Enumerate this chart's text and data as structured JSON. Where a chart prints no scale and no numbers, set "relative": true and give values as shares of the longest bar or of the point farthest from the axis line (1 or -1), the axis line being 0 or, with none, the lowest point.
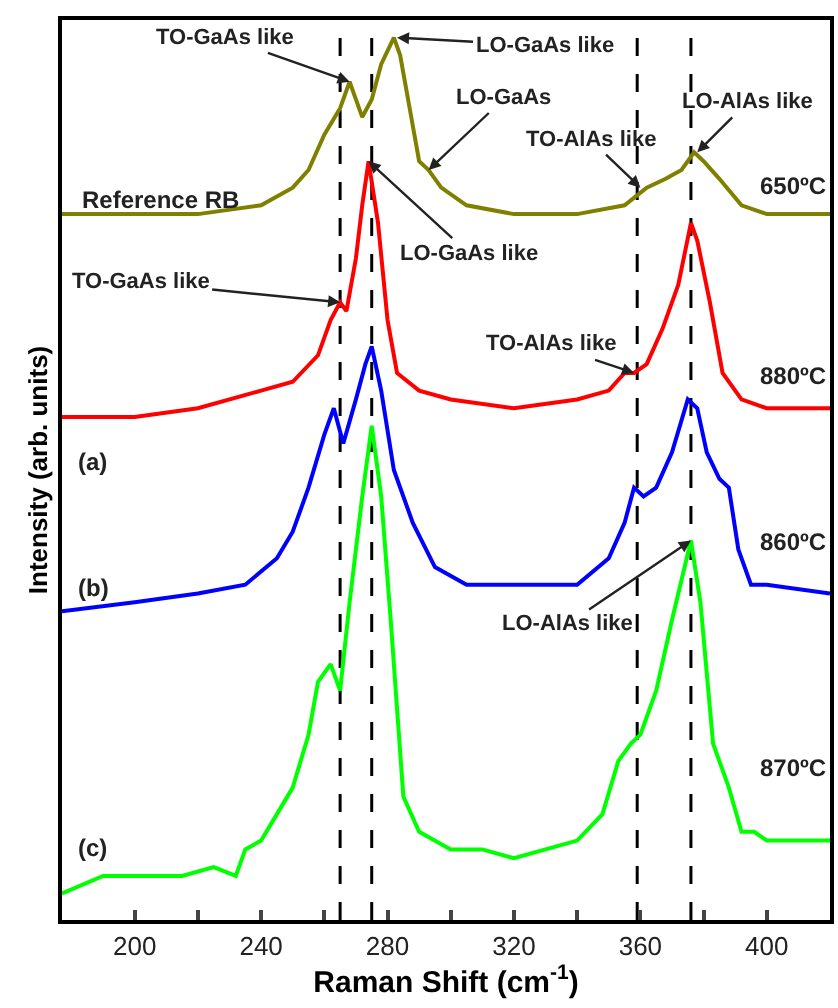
{
  "chart_data": {
    "type": "line",
    "relative": true,
    "xlabel": "Raman Shift (cm$^{-1}$)",
    "ylabel": "Intensity (arb. units)",
    "xlim": [
      177,
      420
    ],
    "xticks": [
      200,
      {
        "value": 220,
        "label": null
      },
      240,
      {
        "value": 260,
        "label": null
      },
      280,
      {
        "value": 300,
        "label": null
      },
      320,
      {
        "value": 340,
        "label": null
      },
      360,
      {
        "value": 380,
        "label": null
      },
      400
    ],
    "tick_labels": "x",
    "series": [
      {
        "color": "#808000",
        "x": [
          177,
          200,
          220,
          240,
          250,
          255,
          260,
          265,
          268,
          270,
          272,
          275,
          278,
          282,
          284,
          287,
          290,
          293,
          297,
          305,
          320,
          340,
          355,
          362,
          368,
          373,
          377,
          380,
          385,
          392,
          400,
          420
        ],
        "values": [
          0.8,
          0.8,
          0.8,
          0.81,
          0.83,
          0.85,
          0.89,
          0.92,
          0.95,
          0.93,
          0.91,
          0.93,
          0.97,
          1.0,
          0.98,
          0.92,
          0.86,
          0.85,
          0.83,
          0.81,
          0.8,
          0.8,
          0.81,
          0.83,
          0.84,
          0.85,
          0.87,
          0.86,
          0.84,
          0.81,
          0.8,
          0.8
        ]
      },
      {
        "color": "#ff0000",
        "x": [
          177,
          200,
          220,
          240,
          250,
          258,
          262,
          265,
          267,
          270,
          272,
          274,
          277,
          280,
          283,
          290,
          300,
          320,
          340,
          350,
          355,
          358,
          362,
          367,
          372,
          376,
          378,
          382,
          386,
          392,
          400,
          420
        ],
        "values": [
          0.57,
          0.57,
          0.58,
          0.6,
          0.61,
          0.64,
          0.68,
          0.7,
          0.69,
          0.75,
          0.81,
          0.86,
          0.79,
          0.68,
          0.62,
          0.6,
          0.59,
          0.58,
          0.59,
          0.6,
          0.62,
          0.62,
          0.63,
          0.67,
          0.72,
          0.79,
          0.77,
          0.7,
          0.62,
          0.59,
          0.58,
          0.58
        ]
      },
      {
        "color": "#0000ff",
        "x": [
          177,
          200,
          220,
          235,
          245,
          250,
          255,
          260,
          263,
          266,
          270,
          273,
          275,
          278,
          282,
          288,
          295,
          305,
          320,
          340,
          350,
          355,
          358,
          361,
          365,
          370,
          375,
          378,
          381,
          385,
          388,
          391,
          395,
          400,
          420
        ],
        "values": [
          0.35,
          0.36,
          0.37,
          0.38,
          0.41,
          0.44,
          0.49,
          0.55,
          0.58,
          0.54,
          0.59,
          0.63,
          0.65,
          0.6,
          0.51,
          0.45,
          0.4,
          0.38,
          0.38,
          0.38,
          0.41,
          0.45,
          0.49,
          0.48,
          0.49,
          0.53,
          0.59,
          0.58,
          0.53,
          0.5,
          0.49,
          0.42,
          0.38,
          0.38,
          0.37
        ]
      },
      {
        "color": "#00ff00",
        "x": [
          177,
          190,
          200,
          215,
          225,
          232,
          235,
          240,
          245,
          250,
          255,
          258,
          262,
          265,
          268,
          272,
          275,
          278,
          281,
          285,
          290,
          300,
          310,
          320,
          330,
          340,
          348,
          353,
          357,
          360,
          365,
          370,
          374,
          376,
          379,
          383,
          388,
          392,
          396,
          400,
          420
        ],
        "values": [
          0.03,
          0.05,
          0.05,
          0.05,
          0.06,
          0.05,
          0.08,
          0.09,
          0.12,
          0.15,
          0.21,
          0.27,
          0.29,
          0.26,
          0.36,
          0.48,
          0.56,
          0.48,
          0.34,
          0.14,
          0.1,
          0.08,
          0.08,
          0.07,
          0.08,
          0.09,
          0.12,
          0.18,
          0.2,
          0.21,
          0.26,
          0.34,
          0.4,
          0.43,
          0.36,
          0.2,
          0.15,
          0.1,
          0.1,
          0.09,
          0.09
        ]
      }
    ],
    "ref_lines": [
      {
        "axis": "x",
        "value": 265,
        "color": "#000000",
        "line_style": "dashed"
      },
      {
        "axis": "x",
        "value": 275,
        "color": "#000000",
        "line_style": "dashed"
      },
      {
        "axis": "x",
        "value": 359,
        "color": "#000000",
        "line_style": "dashed"
      },
      {
        "axis": "x",
        "value": 376,
        "color": "#000000",
        "line_style": "dashed"
      }
    ],
    "annotations": [
      {
        "text": "TO-GaAs like",
        "x": 268,
        "y": 0.95
      },
      {
        "text": "LO-GaAs like",
        "x": 283,
        "y": 1.0
      },
      {
        "text": "LO-GaAs",
        "x": 293,
        "y": 0.85
      },
      {
        "text": "TO-AlAs like",
        "x": 360,
        "y": 0.83
      },
      {
        "text": "LO-AlAs like",
        "x": 378,
        "y": 0.87
      },
      {
        "text": "LO-GaAs like",
        "x": 274,
        "y": 0.86
      },
      {
        "text": "TO-GaAs like",
        "x": 265,
        "y": 0.7
      },
      {
        "text": "TO-AlAs like",
        "x": 358,
        "y": 0.62
      },
      {
        "text": "LO-AlAs like",
        "x": 376,
        "y": 0.43
      },
      "Reference RB",
      "650ºC",
      "880ºC",
      "(a)",
      "860ºC",
      "(b)",
      "870ºC",
      "(c)"
    ]
  }
}
